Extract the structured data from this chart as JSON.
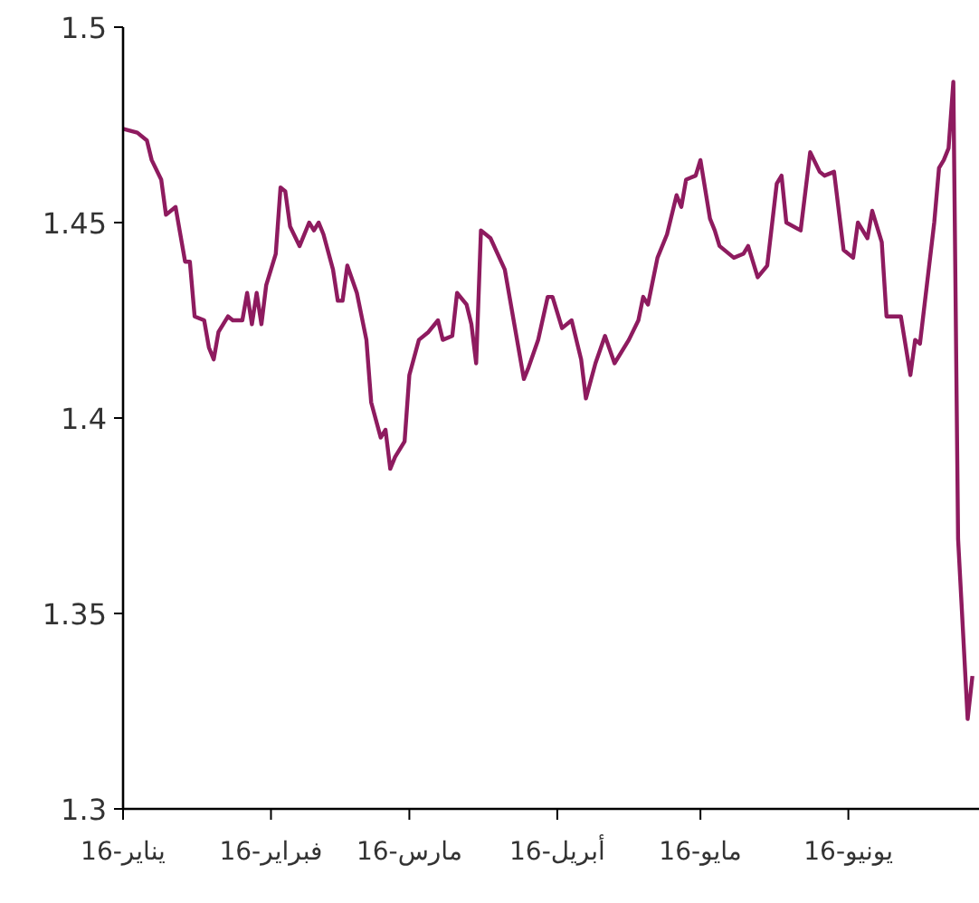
{
  "chart_data": {
    "type": "line",
    "xlim": [
      "2016-01-01",
      "2016-06-28"
    ],
    "ylim": [
      1.3,
      1.5
    ],
    "yticks": [
      1.3,
      1.35,
      1.4,
      1.45,
      1.5
    ],
    "xticks": [
      {
        "value": "2016-01-01",
        "label": "يناير-16"
      },
      {
        "value": "2016-02-01",
        "label": "فبراير-16"
      },
      {
        "value": "2016-03-01",
        "label": "مارس-16"
      },
      {
        "value": "2016-04-01",
        "label": "أبريل-16"
      },
      {
        "value": "2016-05-01",
        "label": "مايو-16"
      },
      {
        "value": "2016-06-01",
        "label": "يونيو-16"
      }
    ],
    "grid": false,
    "marker": "none",
    "line_style": "solid",
    "series": [
      {
        "color": "#8e1b5f",
        "x": [
          "2016-01-01",
          "2016-01-04",
          "2016-01-06",
          "2016-01-07",
          "2016-01-09",
          "2016-01-10",
          "2016-01-12",
          "2016-01-13",
          "2016-01-14",
          "2016-01-15",
          "2016-01-16",
          "2016-01-18",
          "2016-01-19",
          "2016-01-20",
          "2016-01-21",
          "2016-01-23",
          "2016-01-24",
          "2016-01-26",
          "2016-01-27",
          "2016-01-28",
          "2016-01-29",
          "2016-01-30",
          "2016-01-31",
          "2016-02-02",
          "2016-02-03",
          "2016-02-04",
          "2016-02-05",
          "2016-02-07",
          "2016-02-09",
          "2016-02-10",
          "2016-02-11",
          "2016-02-12",
          "2016-02-14",
          "2016-02-15",
          "2016-02-16",
          "2016-02-17",
          "2016-02-19",
          "2016-02-21",
          "2016-02-22",
          "2016-02-24",
          "2016-02-25",
          "2016-02-26",
          "2016-02-27",
          "2016-02-29",
          "2016-03-01",
          "2016-03-03",
          "2016-03-05",
          "2016-03-07",
          "2016-03-08",
          "2016-03-10",
          "2016-03-11",
          "2016-03-13",
          "2016-03-14",
          "2016-03-15",
          "2016-03-16",
          "2016-03-18",
          "2016-03-21",
          "2016-03-23",
          "2016-03-25",
          "2016-03-26",
          "2016-03-28",
          "2016-03-30",
          "2016-03-31",
          "2016-04-02",
          "2016-04-04",
          "2016-04-06",
          "2016-04-07",
          "2016-04-09",
          "2016-04-11",
          "2016-04-13",
          "2016-04-16",
          "2016-04-18",
          "2016-04-19",
          "2016-04-20",
          "2016-04-22",
          "2016-04-24",
          "2016-04-26",
          "2016-04-27",
          "2016-04-28",
          "2016-04-30",
          "2016-05-01",
          "2016-05-03",
          "2016-05-04",
          "2016-05-05",
          "2016-05-08",
          "2016-05-10",
          "2016-05-11",
          "2016-05-13",
          "2016-05-15",
          "2016-05-17",
          "2016-05-18",
          "2016-05-19",
          "2016-05-22",
          "2016-05-24",
          "2016-05-26",
          "2016-05-27",
          "2016-05-29",
          "2016-05-31",
          "2016-06-02",
          "2016-06-03",
          "2016-06-05",
          "2016-06-06",
          "2016-06-08",
          "2016-06-09",
          "2016-06-12",
          "2016-06-14",
          "2016-06-15",
          "2016-06-16",
          "2016-06-19",
          "2016-06-20",
          "2016-06-21",
          "2016-06-22",
          "2016-06-23",
          "2016-06-24",
          "2016-06-26",
          "2016-06-27"
        ],
        "values": [
          1.474,
          1.473,
          1.471,
          1.466,
          1.461,
          1.452,
          1.454,
          1.447,
          1.44,
          1.44,
          1.426,
          1.425,
          1.418,
          1.415,
          1.422,
          1.426,
          1.425,
          1.425,
          1.432,
          1.424,
          1.432,
          1.424,
          1.434,
          1.442,
          1.459,
          1.458,
          1.449,
          1.444,
          1.45,
          1.448,
          1.45,
          1.447,
          1.438,
          1.43,
          1.43,
          1.439,
          1.432,
          1.42,
          1.404,
          1.395,
          1.397,
          1.387,
          1.39,
          1.394,
          1.411,
          1.42,
          1.422,
          1.425,
          1.42,
          1.421,
          1.432,
          1.429,
          1.424,
          1.414,
          1.448,
          1.446,
          1.438,
          1.424,
          1.41,
          1.413,
          1.42,
          1.431,
          1.431,
          1.423,
          1.425,
          1.415,
          1.405,
          1.414,
          1.421,
          1.414,
          1.42,
          1.425,
          1.431,
          1.429,
          1.441,
          1.447,
          1.457,
          1.454,
          1.461,
          1.462,
          1.466,
          1.451,
          1.448,
          1.444,
          1.441,
          1.442,
          1.444,
          1.436,
          1.439,
          1.46,
          1.462,
          1.45,
          1.448,
          1.468,
          1.463,
          1.462,
          1.463,
          1.443,
          1.441,
          1.45,
          1.446,
          1.453,
          1.445,
          1.426,
          1.426,
          1.411,
          1.42,
          1.419,
          1.45,
          1.464,
          1.466,
          1.469,
          1.486,
          1.369,
          1.323,
          1.334
        ]
      }
    ]
  }
}
